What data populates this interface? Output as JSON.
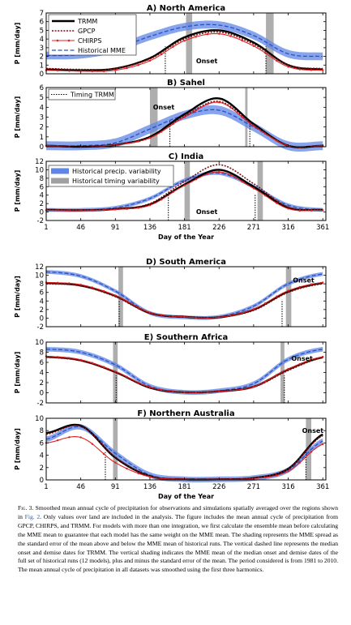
{
  "x_axis": {
    "ticks": [
      1,
      46,
      91,
      136,
      181,
      226,
      271,
      316,
      361
    ],
    "label": "Day of the Year"
  },
  "ylabel": "P [mm/day]",
  "colors": {
    "trmm": "#000000",
    "gpcp": "#8b0a0a",
    "chirps": "#e02020",
    "mme": "#2a52be",
    "mme_band": "#5f86e6",
    "timing": "#a0a0a0"
  },
  "legends": {
    "top": [
      "TRMM",
      "GPCP",
      "CHIRPS",
      "Historical MME"
    ],
    "timing": "Timing TRMM",
    "shading": [
      "Historical precip. variability",
      "Historical timing variability"
    ]
  },
  "onset_label": "Onset",
  "caption": {
    "lead": "Fig. 3.",
    "text_before_ref": " Smoothed mean annual cycle of precipitation for observations and simulations spatially averaged over the regions shown in ",
    "ref": "Fig. 2",
    "text_after_ref": ". Only values over land are included in the analysis. The figure includes the mean annual cycle of precipitation from GPCP, CHIRPS, and TRMM. For models with more than one integration, we first calculate the ensemble mean before calculating the MME mean to guarantee that each model has the same weight on the MME mean. The shading represents the MME spread as the standard error of the mean above and below the MME mean of historical runs. The vertical dashed line represents the median onset and demise dates for TRMM. The vertical shading indicates the MME mean of the median onset and demise dates of the full set of historical runs (12 models), plus and minus the standard error of the mean. The period considered is from 1981 to 2010. The mean annual cycle of precipitation in all datasets was smoothed using the first three harmonics."
  },
  "chart_data": [
    {
      "type": "line",
      "title": "A) North America",
      "ylim": [
        0,
        7
      ],
      "yticks": [
        0,
        1,
        2,
        3,
        4,
        5,
        6,
        7
      ],
      "x": [
        1,
        46,
        91,
        136,
        181,
        226,
        271,
        316,
        361
      ],
      "series": [
        {
          "name": "TRMM",
          "values": [
            0.5,
            0.4,
            0.6,
            1.8,
            4.2,
            5.0,
            3.6,
            1.0,
            0.5
          ]
        },
        {
          "name": "GPCP",
          "values": [
            0.6,
            0.5,
            0.6,
            1.7,
            4.0,
            4.8,
            3.4,
            1.0,
            0.6
          ]
        },
        {
          "name": "CHIRPS",
          "values": [
            0.4,
            0.3,
            0.4,
            1.5,
            3.8,
            4.6,
            3.2,
            0.8,
            0.4
          ]
        },
        {
          "name": "Historical MME",
          "values": [
            2.1,
            2.2,
            2.9,
            4.3,
            5.4,
            5.6,
            4.4,
            2.3,
            2.0
          ]
        }
      ],
      "trmm_onset_demise": [
        156,
        287
      ],
      "mme_timing_bands": [
        [
          183,
          191
        ],
        [
          287,
          297
        ]
      ],
      "onset_label_x": 196,
      "onset_label_y": 1.2
    },
    {
      "type": "line",
      "title": "B) Sahel",
      "ylim": [
        0,
        6
      ],
      "yticks": [
        0,
        1,
        2,
        3,
        4,
        5,
        6
      ],
      "x": [
        1,
        46,
        91,
        136,
        181,
        226,
        271,
        316,
        361
      ],
      "series": [
        {
          "name": "TRMM",
          "values": [
            0.1,
            0.0,
            0.2,
            1.0,
            3.3,
            4.9,
            2.3,
            0.1,
            0.1
          ]
        },
        {
          "name": "GPCP",
          "values": [
            0.1,
            0.0,
            0.2,
            0.9,
            3.1,
            4.6,
            2.2,
            0.1,
            0.1
          ]
        },
        {
          "name": "CHIRPS",
          "values": [
            0.1,
            0.0,
            0.2,
            0.9,
            3.0,
            4.5,
            2.1,
            0.1,
            0.1
          ]
        },
        {
          "name": "Historical MME",
          "values": [
            0.1,
            0.1,
            0.4,
            1.8,
            3.2,
            3.7,
            2.0,
            0.1,
            0.1
          ]
        }
      ],
      "trmm_onset_demise": [
        162,
        266
      ],
      "mme_timing_bands": [
        [
          136,
          146
        ],
        [
          260,
          263
        ]
      ],
      "onset_label_x": 140,
      "onset_label_y": 3.8
    },
    {
      "type": "line",
      "title": "C) India",
      "ylim": [
        -2,
        12
      ],
      "yticks": [
        -2,
        0,
        2,
        4,
        6,
        8,
        10,
        12
      ],
      "x": [
        1,
        46,
        91,
        136,
        181,
        226,
        271,
        316,
        361
      ],
      "series": [
        {
          "name": "TRMM",
          "values": [
            0.5,
            0.4,
            0.7,
            1.8,
            6.5,
            10.0,
            6.0,
            1.0,
            0.5
          ]
        },
        {
          "name": "GPCP",
          "values": [
            0.6,
            0.5,
            0.8,
            2.0,
            7.2,
            11.2,
            6.7,
            1.2,
            0.6
          ]
        },
        {
          "name": "CHIRPS",
          "values": [
            0.4,
            0.3,
            0.6,
            1.6,
            6.3,
            9.5,
            5.6,
            0.8,
            0.4
          ]
        },
        {
          "name": "Historical MME",
          "values": [
            0.5,
            0.5,
            1.0,
            3.2,
            7.5,
            9.2,
            6.0,
            1.6,
            0.5
          ]
        }
      ],
      "trmm_onset_demise": [
        160,
        273
      ],
      "mme_timing_bands": [
        [
          181,
          188
        ],
        [
          276,
          283
        ]
      ],
      "onset_label_x": 196,
      "onset_label_y": -0.5
    },
    {
      "type": "line",
      "title": "D) South America",
      "ylim": [
        -2,
        12
      ],
      "yticks": [
        -2,
        0,
        2,
        4,
        6,
        8,
        10,
        12
      ],
      "x": [
        1,
        46,
        91,
        136,
        181,
        226,
        271,
        316,
        361
      ],
      "series": [
        {
          "name": "TRMM",
          "values": [
            8.2,
            7.6,
            5.2,
            1.2,
            0.3,
            0.2,
            2.0,
            6.2,
            8.2
          ]
        },
        {
          "name": "GPCP",
          "values": [
            8.0,
            7.5,
            5.0,
            1.1,
            0.3,
            0.2,
            1.8,
            6.0,
            8.0
          ]
        },
        {
          "name": "CHIRPS",
          "values": [
            8.3,
            7.8,
            5.3,
            1.3,
            0.3,
            0.2,
            2.1,
            6.4,
            8.3
          ]
        },
        {
          "name": "Historical MME",
          "values": [
            10.8,
            9.8,
            6.3,
            1.2,
            0.2,
            0.3,
            2.8,
            8.0,
            10.3
          ]
        }
      ],
      "trmm_onset_demise": [
        96,
        308
      ],
      "mme_timing_bands": [
        [
          95,
          101
        ],
        [
          313,
          320
        ]
      ],
      "onset_label_x": 322,
      "onset_label_y": 8.3
    },
    {
      "type": "line",
      "title": "E) Southern Africa",
      "ylim": [
        -2,
        10
      ],
      "yticks": [
        -2,
        0,
        2,
        4,
        6,
        8,
        10
      ],
      "x": [
        1,
        46,
        91,
        136,
        181,
        226,
        271,
        316,
        361
      ],
      "series": [
        {
          "name": "TRMM",
          "values": [
            7.1,
            6.4,
            4.1,
            1.0,
            0.1,
            0.3,
            1.2,
            4.6,
            7.0
          ]
        },
        {
          "name": "GPCP",
          "values": [
            7.0,
            6.3,
            4.0,
            1.0,
            0.1,
            0.3,
            1.1,
            4.4,
            6.9
          ]
        },
        {
          "name": "CHIRPS",
          "values": [
            7.2,
            6.5,
            4.2,
            1.1,
            0.1,
            0.3,
            1.2,
            4.7,
            7.1
          ]
        },
        {
          "name": "Historical MME",
          "values": [
            8.6,
            8.0,
            5.5,
            1.3,
            0.1,
            0.4,
            1.8,
            6.6,
            8.6
          ]
        }
      ],
      "trmm_onset_demise": [
        92,
        311
      ],
      "mme_timing_bands": [
        [
          88,
          94
        ],
        [
          306,
          311
        ]
      ],
      "onset_label_x": 320,
      "onset_label_y": 6.3
    },
    {
      "type": "line",
      "title": "F) Northern Australia",
      "ylim": [
        0,
        10
      ],
      "yticks": [
        0,
        2,
        4,
        6,
        8,
        10
      ],
      "x": [
        1,
        46,
        91,
        136,
        181,
        226,
        271,
        316,
        361
      ],
      "series": [
        {
          "name": "TRMM",
          "values": [
            7.6,
            8.8,
            3.6,
            0.6,
            0.1,
            0.1,
            0.3,
            1.8,
            7.4
          ]
        },
        {
          "name": "GPCP",
          "values": [
            7.4,
            8.7,
            3.7,
            0.6,
            0.1,
            0.1,
            0.3,
            1.8,
            7.2
          ]
        },
        {
          "name": "CHIRPS",
          "values": [
            6.0,
            6.9,
            2.8,
            0.5,
            0.1,
            0.1,
            0.2,
            1.4,
            5.8
          ]
        },
        {
          "name": "Historical MME",
          "values": [
            6.6,
            8.6,
            4.3,
            0.8,
            0.1,
            0.1,
            0.3,
            1.6,
            6.3
          ]
        }
      ],
      "trmm_onset_demise": [
        78,
        339
      ],
      "mme_timing_bands": [
        [
          88,
          94
        ],
        [
          339,
          346
        ]
      ],
      "onset_label_x": 334,
      "onset_label_y": 7.6
    }
  ]
}
